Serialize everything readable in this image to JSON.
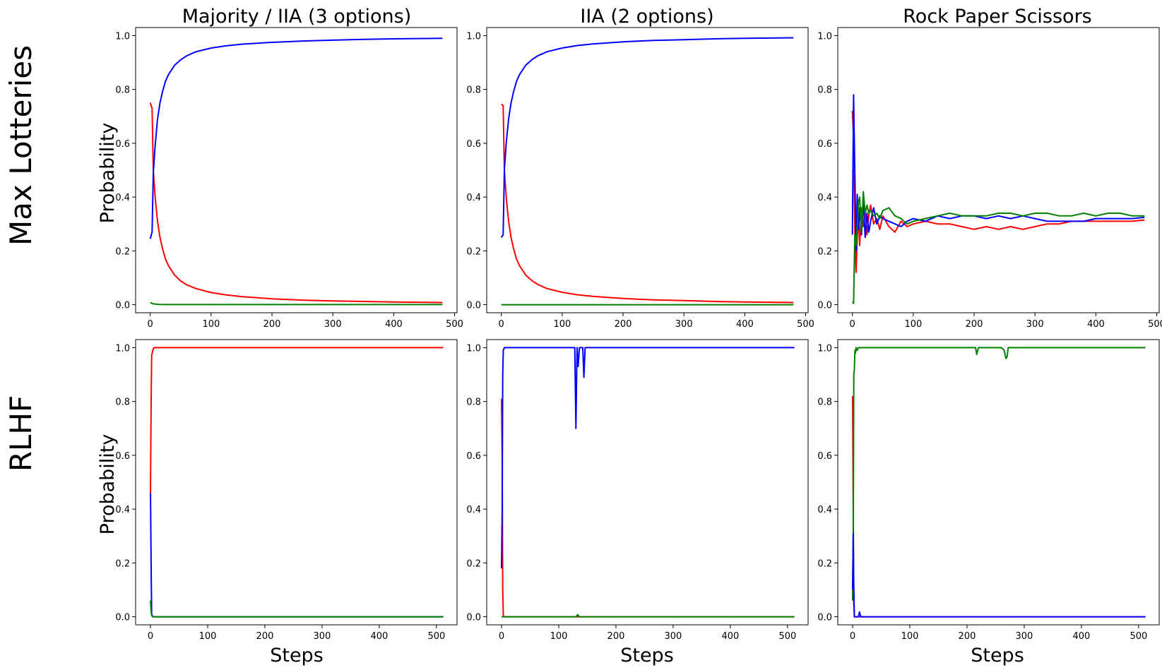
{
  "chart_data": {
    "type": "line",
    "column_titles": [
      "Majority / IIA (3 options)",
      "IIA (2 options)",
      "Rock Paper Scissors"
    ],
    "row_titles": [
      "Max Lotteries",
      "RLHF"
    ],
    "ylabel": "Probability",
    "xlabel": "Steps",
    "series_colors": {
      "red": "#ff0000",
      "blue": "#0000ff",
      "green": "#008000"
    },
    "y_ticks": [
      "0.0",
      "0.2",
      "0.4",
      "0.6",
      "0.8",
      "1.0"
    ],
    "y_tick_values": [
      0,
      0.2,
      0.4,
      0.6,
      0.8,
      1.0
    ],
    "x_ticks": [
      "0",
      "100",
      "200",
      "300",
      "400",
      "500"
    ],
    "x_tick_values": [
      0,
      100,
      200,
      300,
      400,
      500
    ],
    "panels": [
      {
        "id": "max-lotteries-majority",
        "xlim": [
          -24,
          504
        ],
        "ylim": [
          -0.03,
          1.03
        ],
        "series": [
          {
            "color": "red",
            "x": [
              0,
              3,
              5,
              8,
              12,
              16,
              20,
              25,
              30,
              40,
              50,
              60,
              75,
              100,
              125,
              150,
              200,
              250,
              300,
              350,
              400,
              480
            ],
            "y": [
              0.75,
              0.73,
              0.5,
              0.4,
              0.31,
              0.25,
              0.21,
              0.17,
              0.145,
              0.11,
              0.088,
              0.074,
              0.06,
              0.045,
              0.036,
              0.03,
              0.022,
              0.017,
              0.014,
              0.012,
              0.01,
              0.008
            ]
          },
          {
            "color": "blue",
            "x": [
              0,
              3,
              5,
              8,
              12,
              16,
              20,
              25,
              30,
              40,
              50,
              60,
              75,
              100,
              125,
              150,
              200,
              250,
              300,
              350,
              400,
              480
            ],
            "y": [
              0.245,
              0.27,
              0.49,
              0.59,
              0.69,
              0.75,
              0.79,
              0.83,
              0.855,
              0.89,
              0.91,
              0.925,
              0.94,
              0.954,
              0.962,
              0.968,
              0.975,
              0.98,
              0.983,
              0.986,
              0.988,
              0.99
            ]
          },
          {
            "color": "green",
            "x": [
              0,
              5,
              15,
              30,
              480
            ],
            "y": [
              0.008,
              0.003,
              0.001,
              0.0005,
              0.0005
            ]
          }
        ]
      },
      {
        "id": "max-lotteries-iia2",
        "xlim": [
          -24,
          504
        ],
        "ylim": [
          -0.03,
          1.03
        ],
        "series": [
          {
            "color": "red",
            "x": [
              0,
              3,
              5,
              8,
              12,
              16,
              20,
              25,
              30,
              40,
              50,
              60,
              75,
              100,
              125,
              150,
              200,
              250,
              300,
              350,
              400,
              480
            ],
            "y": [
              0.745,
              0.74,
              0.5,
              0.4,
              0.31,
              0.25,
              0.21,
              0.17,
              0.145,
              0.11,
              0.09,
              0.075,
              0.06,
              0.046,
              0.037,
              0.031,
              0.023,
              0.018,
              0.015,
              0.012,
              0.01,
              0.008
            ]
          },
          {
            "color": "blue",
            "x": [
              0,
              3,
              5,
              8,
              12,
              16,
              20,
              25,
              30,
              40,
              50,
              60,
              75,
              100,
              125,
              150,
              200,
              250,
              300,
              350,
              400,
              480
            ],
            "y": [
              0.25,
              0.26,
              0.5,
              0.6,
              0.69,
              0.75,
              0.79,
              0.83,
              0.855,
              0.89,
              0.91,
              0.925,
              0.94,
              0.954,
              0.963,
              0.969,
              0.977,
              0.982,
              0.985,
              0.988,
              0.99,
              0.992
            ]
          },
          {
            "color": "green",
            "x": [
              0,
              480
            ],
            "y": [
              0.0,
              0.0
            ]
          }
        ]
      },
      {
        "id": "max-lotteries-rps",
        "xlim": [
          -24,
          504
        ],
        "ylim": [
          -0.03,
          1.03
        ],
        "series": [
          {
            "color": "red",
            "x": [
              0,
              2,
              4,
              6,
              8,
              10,
              12,
              15,
              18,
              21,
              24,
              27,
              30,
              35,
              40,
              45,
              50,
              60,
              70,
              80,
              90,
              100,
              120,
              140,
              160,
              180,
              200,
              220,
              240,
              260,
              280,
              300,
              320,
              340,
              360,
              380,
              400,
              420,
              440,
              460,
              480
            ],
            "y": [
              0.72,
              0.62,
              0.28,
              0.12,
              0.25,
              0.33,
              0.22,
              0.36,
              0.29,
              0.35,
              0.26,
              0.33,
              0.37,
              0.3,
              0.32,
              0.28,
              0.33,
              0.29,
              0.27,
              0.31,
              0.29,
              0.3,
              0.31,
              0.3,
              0.3,
              0.29,
              0.28,
              0.29,
              0.28,
              0.29,
              0.28,
              0.29,
              0.3,
              0.3,
              0.31,
              0.31,
              0.31,
              0.31,
              0.31,
              0.31,
              0.315
            ]
          },
          {
            "color": "blue",
            "x": [
              0,
              2,
              4,
              6,
              8,
              10,
              12,
              15,
              18,
              21,
              24,
              27,
              30,
              35,
              40,
              45,
              50,
              60,
              70,
              80,
              90,
              100,
              120,
              140,
              160,
              180,
              200,
              220,
              240,
              260,
              280,
              300,
              320,
              340,
              360,
              380,
              400,
              420,
              440,
              460,
              480
            ],
            "y": [
              0.26,
              0.78,
              0.5,
              0.2,
              0.41,
              0.28,
              0.36,
              0.26,
              0.39,
              0.25,
              0.34,
              0.27,
              0.31,
              0.36,
              0.3,
              0.33,
              0.32,
              0.31,
              0.3,
              0.29,
              0.31,
              0.32,
              0.31,
              0.33,
              0.32,
              0.33,
              0.33,
              0.32,
              0.33,
              0.32,
              0.33,
              0.32,
              0.31,
              0.31,
              0.31,
              0.31,
              0.32,
              0.32,
              0.32,
              0.32,
              0.325
            ]
          },
          {
            "color": "green",
            "x": [
              0,
              2,
              4,
              6,
              8,
              10,
              12,
              15,
              18,
              21,
              24,
              27,
              30,
              35,
              40,
              45,
              50,
              60,
              70,
              80,
              90,
              100,
              120,
              140,
              160,
              180,
              200,
              220,
              240,
              260,
              280,
              300,
              320,
              340,
              360,
              380,
              400,
              420,
              440,
              460,
              480
            ],
            "y": [
              0.01,
              0.005,
              0.26,
              0.22,
              0.29,
              0.38,
              0.4,
              0.27,
              0.42,
              0.34,
              0.37,
              0.34,
              0.35,
              0.33,
              0.34,
              0.32,
              0.35,
              0.36,
              0.33,
              0.32,
              0.3,
              0.31,
              0.32,
              0.33,
              0.34,
              0.33,
              0.33,
              0.33,
              0.34,
              0.34,
              0.33,
              0.34,
              0.34,
              0.33,
              0.33,
              0.34,
              0.33,
              0.34,
              0.34,
              0.33,
              0.33
            ]
          }
        ]
      },
      {
        "id": "rlhf-majority",
        "xlim": [
          -26,
          536
        ],
        "ylim": [
          -0.03,
          1.03
        ],
        "series": [
          {
            "color": "blue",
            "x": [
              0,
              1,
              2,
              4,
              8,
              512
            ],
            "y": [
              0.48,
              0.2,
              0.01,
              0.0,
              0.0,
              0.0
            ]
          },
          {
            "color": "green",
            "x": [
              0,
              1,
              2,
              4,
              512
            ],
            "y": [
              0.06,
              0.02,
              0.005,
              0.0,
              0.0
            ]
          },
          {
            "color": "red",
            "x": [
              0,
              1,
              2,
              4,
              6,
              512
            ],
            "y": [
              0.46,
              0.78,
              0.97,
              0.99,
              1.0,
              1.0
            ]
          }
        ]
      },
      {
        "id": "rlhf-iia2",
        "xlim": [
          -26,
          536
        ],
        "ylim": [
          -0.03,
          1.03
        ],
        "series": [
          {
            "color": "red",
            "x": [
              0,
              1,
              2,
              3,
              5,
              512
            ],
            "y": [
              0.81,
              0.6,
              0.1,
              0.005,
              0.0,
              0.0
            ]
          },
          {
            "color": "green",
            "x": [
              0,
              130,
              133,
              136,
              512
            ],
            "y": [
              0.0,
              0.0,
              0.008,
              0.0,
              0.0
            ]
          },
          {
            "color": "blue",
            "x": [
              0,
              1,
              2,
              3,
              5,
              10,
              20,
              128,
              130,
              132,
              134,
              136,
              138,
              142,
              144,
              146,
              148,
              150,
              512
            ],
            "y": [
              0.18,
              0.4,
              0.9,
              0.99,
              1.0,
              1.0,
              1.0,
              1.0,
              0.7,
              1.0,
              0.93,
              1.0,
              1.0,
              1.0,
              0.89,
              1.0,
              1.0,
              1.0,
              1.0
            ]
          }
        ]
      },
      {
        "id": "rlhf-rps",
        "xlim": [
          -26,
          536
        ],
        "ylim": [
          -0.03,
          1.03
        ],
        "series": [
          {
            "color": "red",
            "x": [
              0,
              1,
              2,
              3,
              5,
              512
            ],
            "y": [
              0.82,
              0.4,
              0.05,
              0.0,
              0.0,
              0.0
            ]
          },
          {
            "color": "green",
            "x": [
              0,
              1,
              2,
              3,
              4,
              5,
              6,
              8,
              10,
              20,
              50,
              100,
              150,
              200,
              215,
              217,
              220,
              240,
              260,
              265,
              268,
              270,
              272,
              275,
              300,
              400,
              512
            ],
            "y": [
              0.06,
              0.3,
              0.9,
              0.92,
              0.99,
              0.98,
              1.0,
              0.99,
              1.0,
              1.0,
              1.0,
              1.0,
              1.0,
              1.0,
              1.0,
              0.975,
              1.0,
              1.0,
              1.0,
              0.99,
              0.96,
              0.965,
              1.0,
              1.0,
              1.0,
              1.0,
              1.0
            ]
          },
          {
            "color": "blue",
            "x": [
              0,
              1,
              2,
              3,
              4,
              8,
              10,
              12,
              14,
              20,
              512
            ],
            "y": [
              0.1,
              0.31,
              0.1,
              0.0,
              0.0,
              0.0,
              0.0,
              0.018,
              0.0,
              0.0,
              0.0
            ]
          }
        ]
      }
    ]
  }
}
